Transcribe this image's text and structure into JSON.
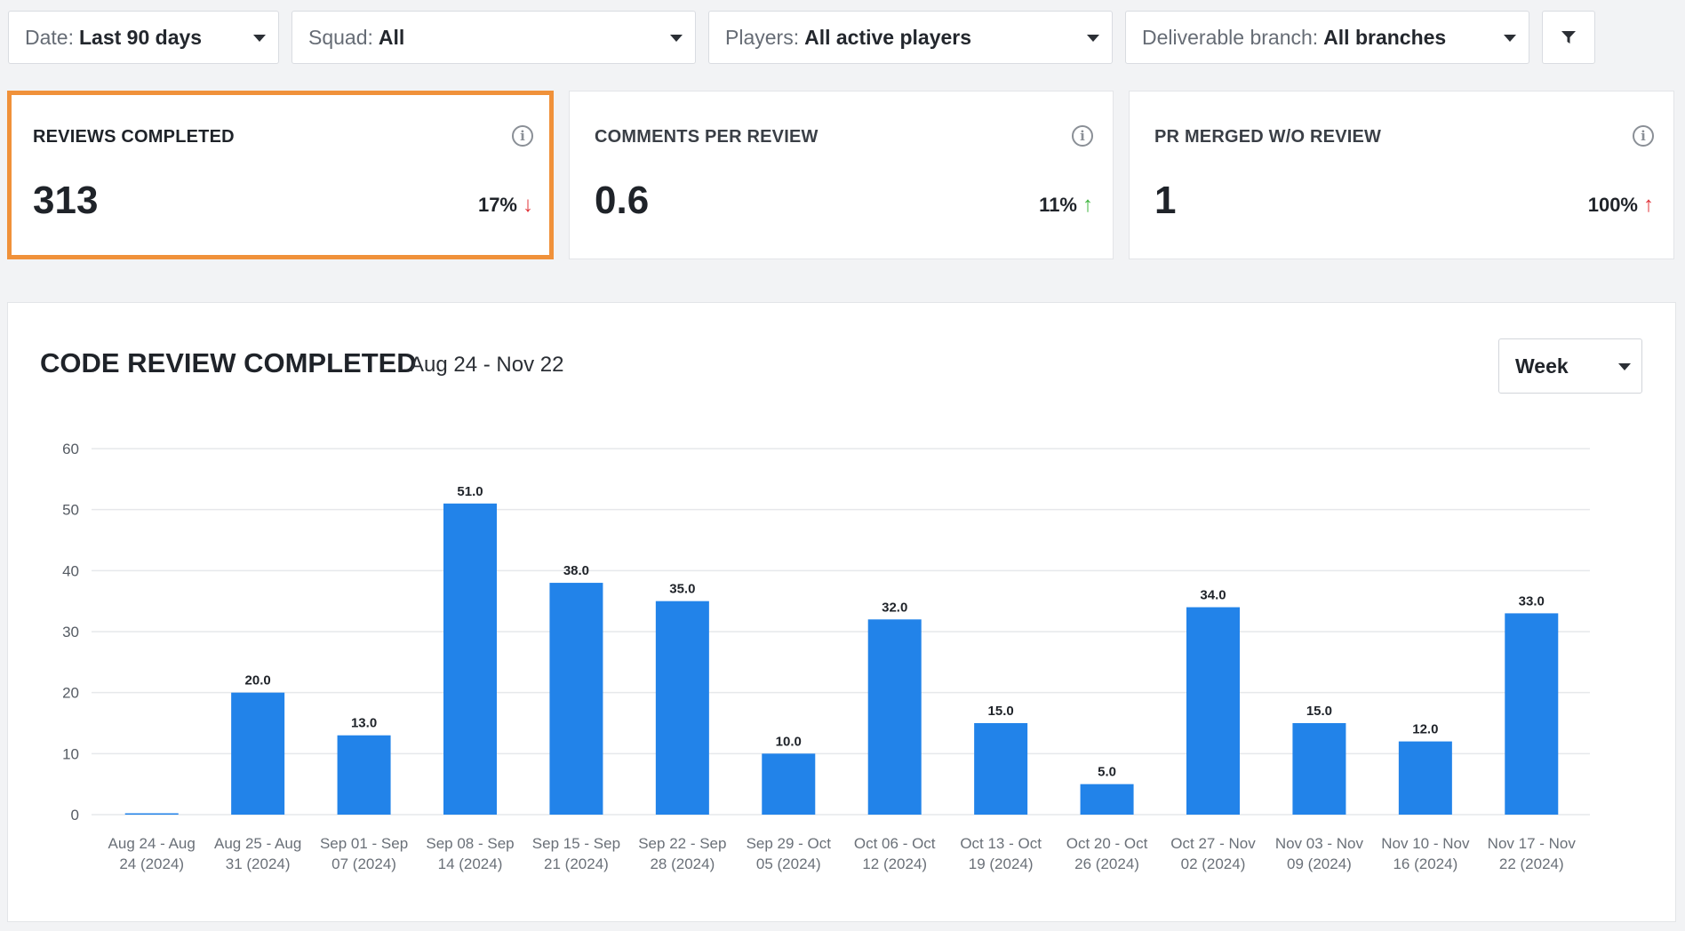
{
  "filters": [
    {
      "label": "Date:",
      "value": "Last 90 days"
    },
    {
      "label": "Squad:",
      "value": "All"
    },
    {
      "label": "Players:",
      "value": "All active players"
    },
    {
      "label": "Deliverable branch:",
      "value": "All branches"
    }
  ],
  "filter_button_icon": "funnel-icon",
  "metrics": [
    {
      "title": "REVIEWS COMPLETED",
      "value": "313",
      "delta": "17%",
      "direction": "down",
      "arrow": "↓",
      "arrow_color": "#e0343a",
      "highlighted": true,
      "info_icon": "info-icon"
    },
    {
      "title": "COMMENTS PER REVIEW",
      "value": "0.6",
      "delta": "11%",
      "direction": "up",
      "arrow": "↑",
      "arrow_color": "#3fb53f",
      "highlighted": false,
      "info_icon": "info-icon"
    },
    {
      "title": "PR MERGED W/O REVIEW",
      "value": "1",
      "delta": "100%",
      "direction": "up",
      "arrow": "↑",
      "arrow_color": "#e0343a",
      "highlighted": false,
      "info_icon": "info-icon"
    }
  ],
  "highlight_color": "#f0913a",
  "panel": {
    "title": "CODE REVIEW COMPLETED",
    "range": "Aug 24 - Nov 22",
    "granularity": "Week"
  },
  "chart_data": {
    "type": "bar",
    "title": "CODE REVIEW COMPLETED",
    "xlabel": "",
    "ylabel": "",
    "ylim": [
      0,
      60
    ],
    "yticks": [
      0,
      10,
      20,
      30,
      40,
      50,
      60
    ],
    "grid": true,
    "bar_color": "#2283e9",
    "categories": [
      [
        "Aug 24 - Aug",
        "24 (2024)"
      ],
      [
        "Aug 25 - Aug",
        "31 (2024)"
      ],
      [
        "Sep 01 - Sep",
        "07 (2024)"
      ],
      [
        "Sep 08 - Sep",
        "14 (2024)"
      ],
      [
        "Sep 15 - Sep",
        "21 (2024)"
      ],
      [
        "Sep 22 - Sep",
        "28 (2024)"
      ],
      [
        "Sep 29 - Oct",
        "05 (2024)"
      ],
      [
        "Oct 06 - Oct",
        "12 (2024)"
      ],
      [
        "Oct 13 - Oct",
        "19 (2024)"
      ],
      [
        "Oct 20 - Oct",
        "26 (2024)"
      ],
      [
        "Oct 27 - Nov",
        "02 (2024)"
      ],
      [
        "Nov 03 - Nov",
        "09 (2024)"
      ],
      [
        "Nov 10 - Nov",
        "16 (2024)"
      ],
      [
        "Nov 17 - Nov",
        "22 (2024)"
      ]
    ],
    "values": [
      0,
      20,
      13,
      51,
      38,
      35,
      10,
      32,
      15,
      5,
      34,
      15,
      12,
      33
    ],
    "data_labels": [
      "",
      "20.0",
      "13.0",
      "51.0",
      "38.0",
      "35.0",
      "10.0",
      "32.0",
      "15.0",
      "5.0",
      "34.0",
      "15.0",
      "12.0",
      "33.0"
    ]
  }
}
